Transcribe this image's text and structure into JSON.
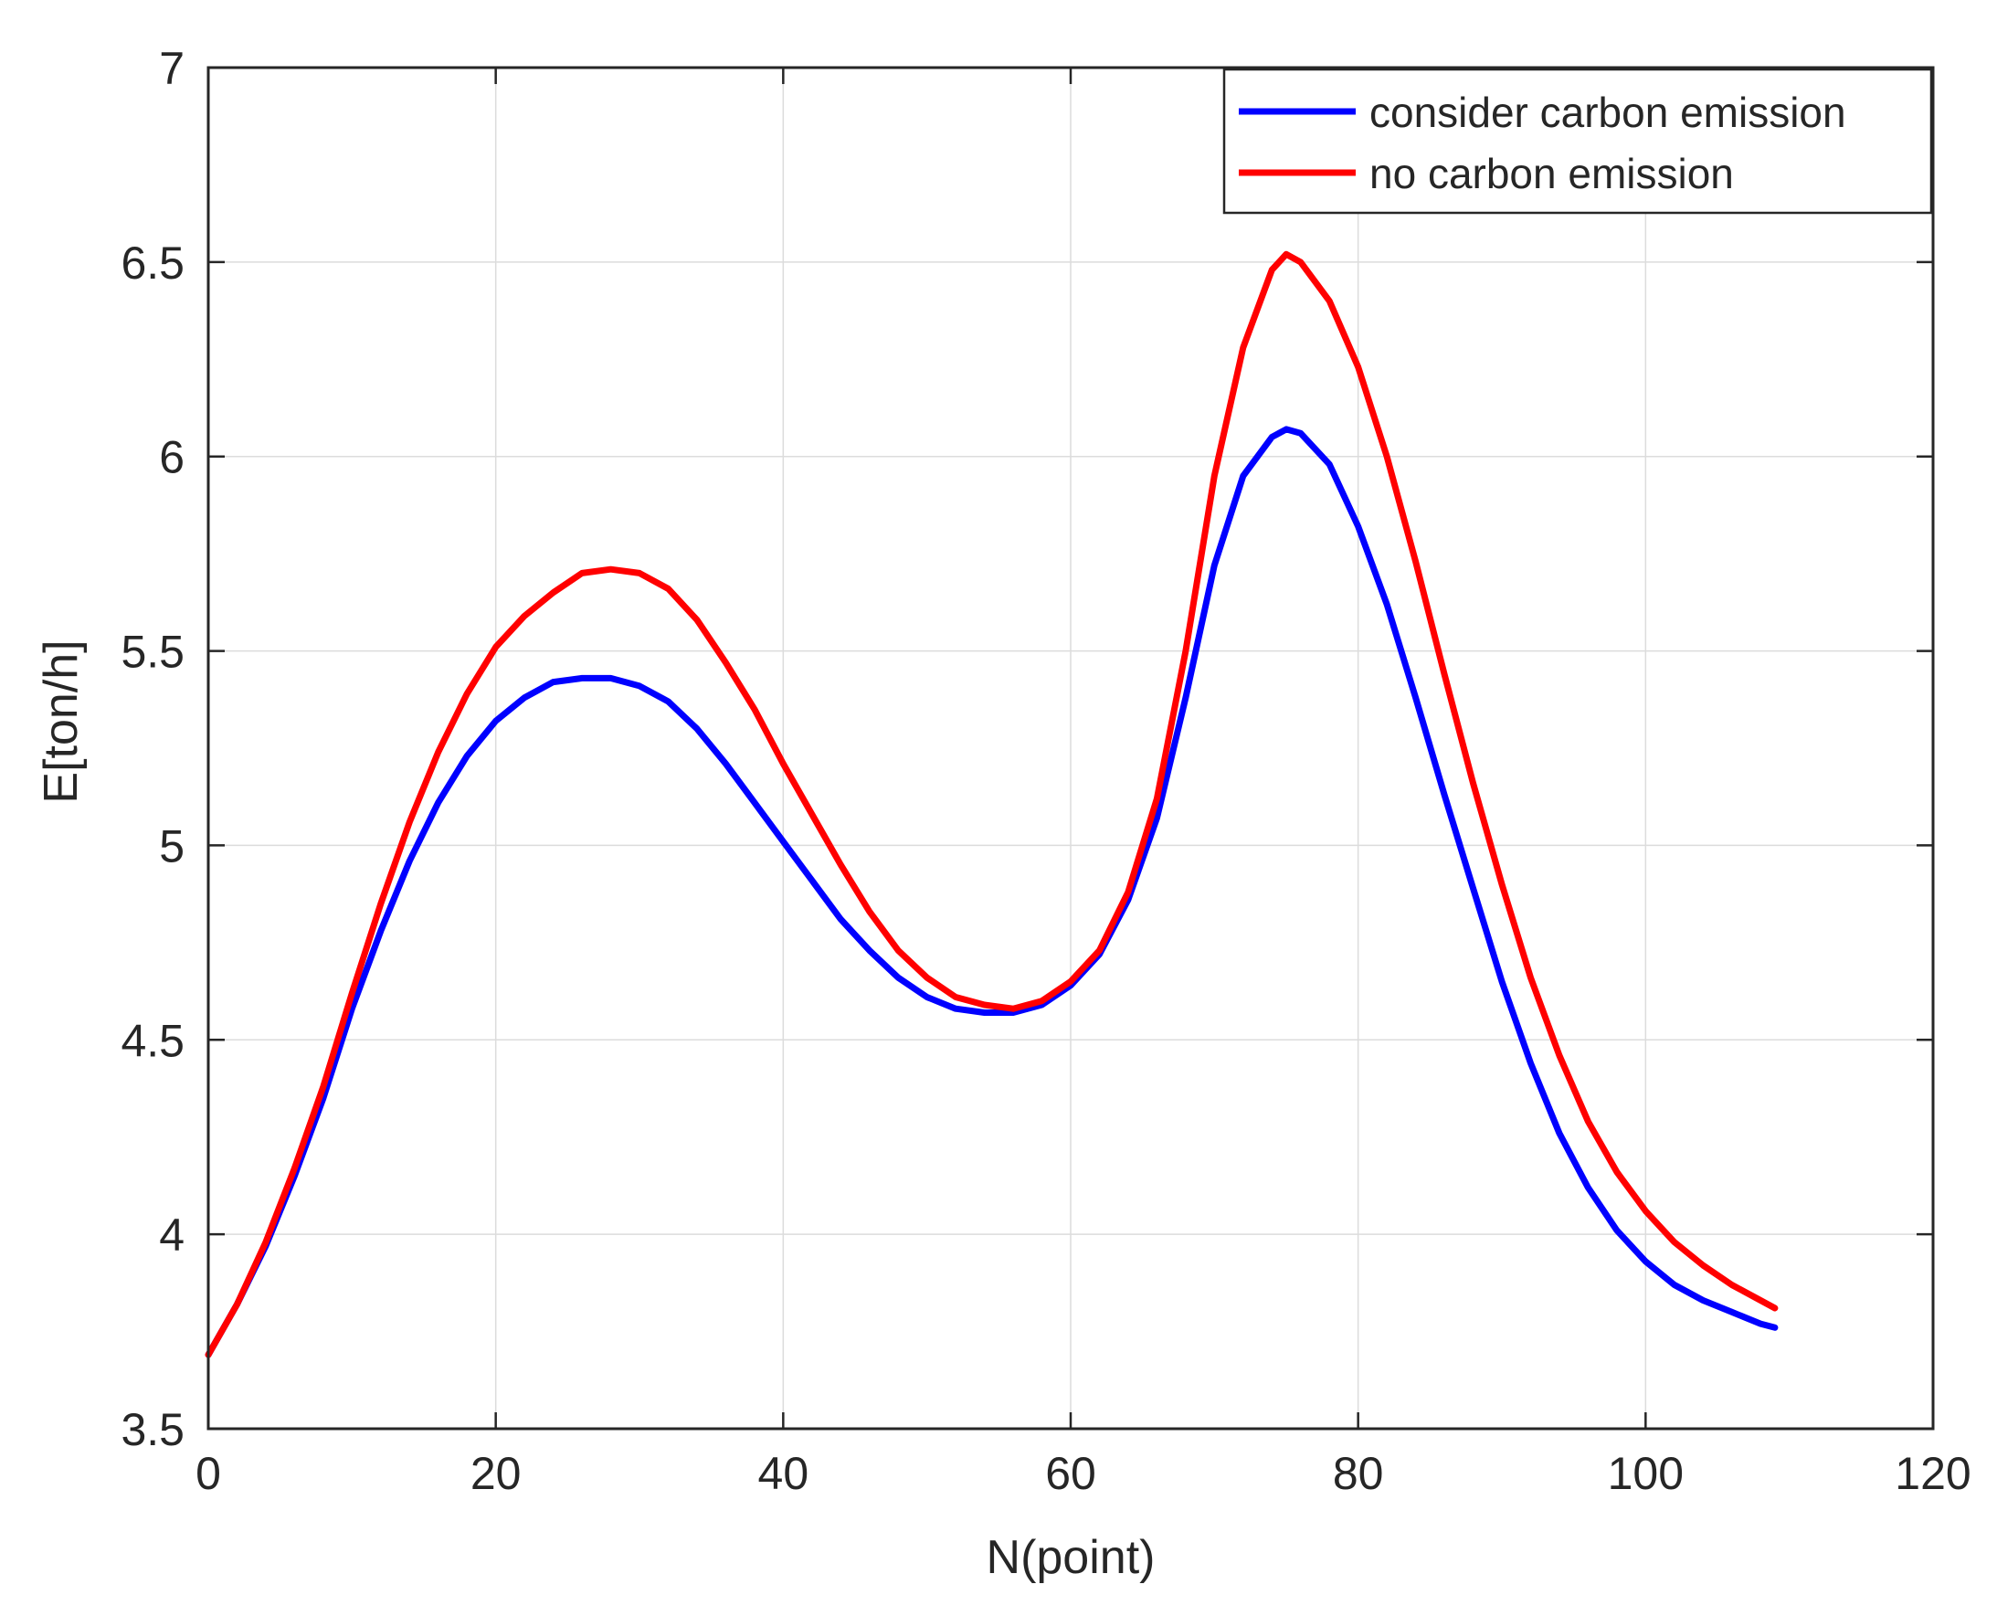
{
  "chart_data": {
    "type": "line",
    "title": "",
    "xlabel": "N(point)",
    "ylabel": "E[ton/h]",
    "xlim": [
      0,
      120
    ],
    "ylim": [
      3.5,
      7
    ],
    "xticks": [
      0,
      20,
      40,
      60,
      80,
      100,
      120
    ],
    "yticks": [
      3.5,
      4,
      4.5,
      5,
      5.5,
      6,
      6.5,
      7
    ],
    "xtick_labels": [
      "0",
      "20",
      "40",
      "60",
      "80",
      "100",
      "120"
    ],
    "ytick_labels": [
      "3.5",
      "4",
      "4.5",
      "5",
      "5.5",
      "6",
      "6.5",
      "7"
    ],
    "grid": true,
    "legend_position": "top-right",
    "x": [
      0,
      2,
      4,
      6,
      8,
      10,
      12,
      14,
      16,
      18,
      20,
      22,
      24,
      26,
      28,
      30,
      32,
      34,
      36,
      38,
      40,
      42,
      44,
      46,
      48,
      50,
      52,
      54,
      56,
      58,
      60,
      62,
      64,
      66,
      68,
      70,
      72,
      74,
      75,
      76,
      78,
      80,
      82,
      84,
      86,
      88,
      90,
      92,
      94,
      96,
      98,
      100,
      102,
      104,
      106,
      108,
      109
    ],
    "series": [
      {
        "name": "consider carbon emission",
        "color": "#0000ff",
        "values": [
          3.69,
          3.82,
          3.97,
          4.15,
          4.35,
          4.58,
          4.78,
          4.96,
          5.11,
          5.23,
          5.32,
          5.38,
          5.42,
          5.43,
          5.43,
          5.41,
          5.37,
          5.3,
          5.21,
          5.11,
          5.01,
          4.91,
          4.81,
          4.73,
          4.66,
          4.61,
          4.58,
          4.57,
          4.57,
          4.59,
          4.64,
          4.72,
          4.86,
          5.07,
          5.38,
          5.72,
          5.95,
          6.05,
          6.07,
          6.06,
          5.98,
          5.82,
          5.62,
          5.38,
          5.13,
          4.89,
          4.65,
          4.44,
          4.26,
          4.12,
          4.01,
          3.93,
          3.87,
          3.83,
          3.8,
          3.77,
          3.76
        ]
      },
      {
        "name": "no carbon emission",
        "color": "#ff0000",
        "values": [
          3.69,
          3.82,
          3.98,
          4.17,
          4.38,
          4.62,
          4.85,
          5.06,
          5.24,
          5.39,
          5.51,
          5.59,
          5.65,
          5.7,
          5.71,
          5.7,
          5.66,
          5.58,
          5.47,
          5.35,
          5.21,
          5.08,
          4.95,
          4.83,
          4.73,
          4.66,
          4.61,
          4.59,
          4.58,
          4.6,
          4.65,
          4.73,
          4.88,
          5.12,
          5.5,
          5.95,
          6.28,
          6.48,
          6.52,
          6.5,
          6.4,
          6.23,
          6.0,
          5.73,
          5.44,
          5.16,
          4.9,
          4.66,
          4.46,
          4.29,
          4.16,
          4.06,
          3.98,
          3.92,
          3.87,
          3.83,
          3.81
        ]
      }
    ]
  }
}
